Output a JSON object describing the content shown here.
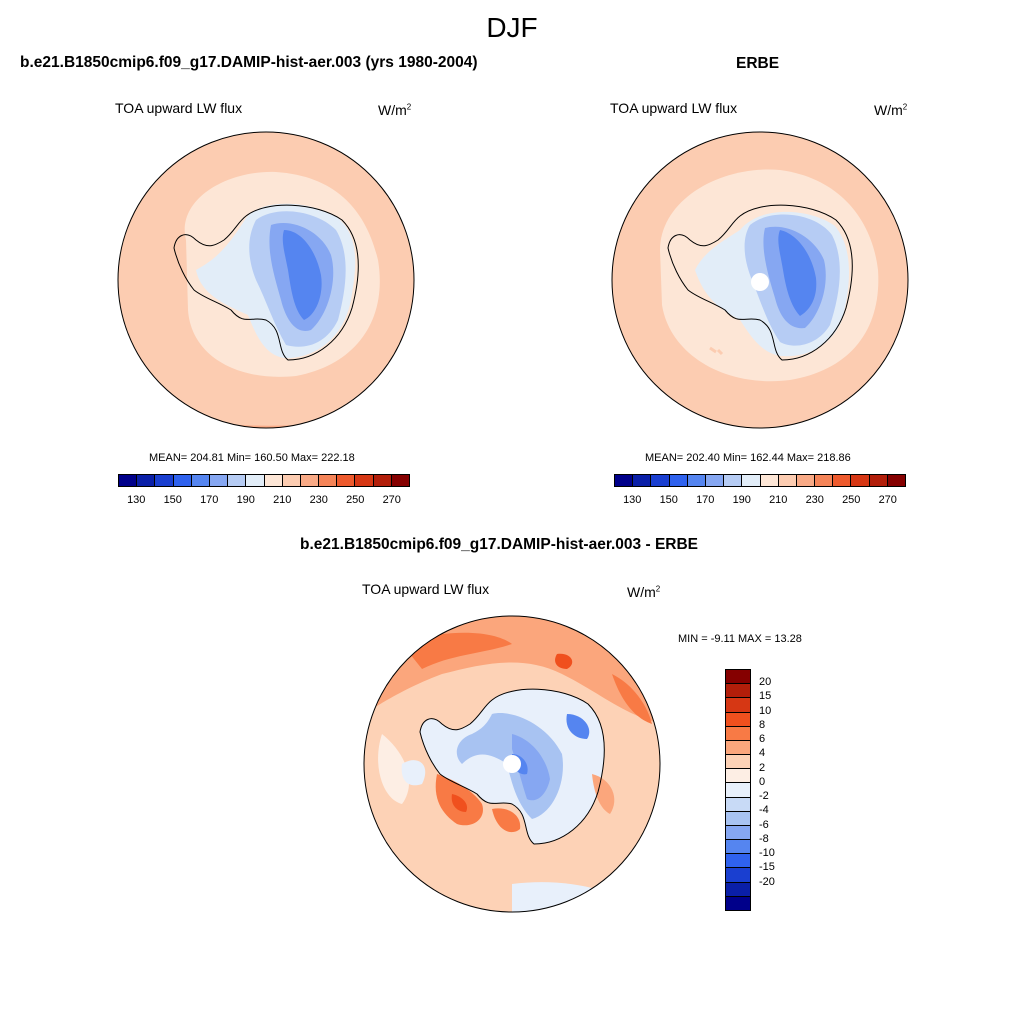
{
  "title": "DJF",
  "panels": [
    {
      "header": "b.e21.B1850cmip6.f09_g17.DAMIP-hist-aer.003 (yrs 1980-2004)",
      "variable": "TOA upward LW flux",
      "units": "W/m",
      "units_sup": "2",
      "stats": "MEAN= 204.81  Min= 160.50  Max= 222.18"
    },
    {
      "header": "ERBE",
      "variable": "TOA upward LW flux",
      "units": "W/m",
      "units_sup": "2",
      "stats": "MEAN= 202.40  Min= 162.44  Max= 218.86"
    },
    {
      "header": "b.e21.B1850cmip6.f09_g17.DAMIP-hist-aer.003 - ERBE",
      "variable": "TOA upward LW flux",
      "units": "W/m",
      "units_sup": "2",
      "stats": "MIN =  -9.11 MAX =  13.28"
    }
  ],
  "colorbar_abs": {
    "colors": [
      "#00008a",
      "#0a1fa8",
      "#1a3fd0",
      "#2f62ee",
      "#5585f0",
      "#86a7f2",
      "#b6ccf4",
      "#e2edf8",
      "#fde6d6",
      "#fcccb1",
      "#f9aa86",
      "#f58458",
      "#ee5a2d",
      "#d63714",
      "#b21e0a",
      "#850000"
    ],
    "tick_labels": [
      "130",
      "150",
      "170",
      "190",
      "210",
      "230",
      "250",
      "270"
    ]
  },
  "colorbar_diff": {
    "colors": [
      "#850000",
      "#b21e0a",
      "#d63714",
      "#f0501e",
      "#f87a45",
      "#fba67c",
      "#fdd2b6",
      "#fdeee4",
      "#e8f0fb",
      "#c8daf6",
      "#a8c3f2",
      "#86a7f2",
      "#5585f0",
      "#2f62ee",
      "#1a3fd0",
      "#0a1fa8",
      "#00008a"
    ],
    "labels": [
      "20",
      "15",
      "10",
      "8",
      "6",
      "4",
      "2",
      "0",
      "-2",
      "-4",
      "-6",
      "-8",
      "-10",
      "-15",
      "-20"
    ]
  },
  "map_colors": {
    "bg_light": "#fde6d6",
    "bg_mid": "#fcccb1",
    "bg_dark": "#f9aa86",
    "blue1": "#e2edf8",
    "blue2": "#b6ccf4",
    "blue3": "#86a7f2",
    "blue4": "#5585f0",
    "blue5": "#2f62ee"
  }
}
